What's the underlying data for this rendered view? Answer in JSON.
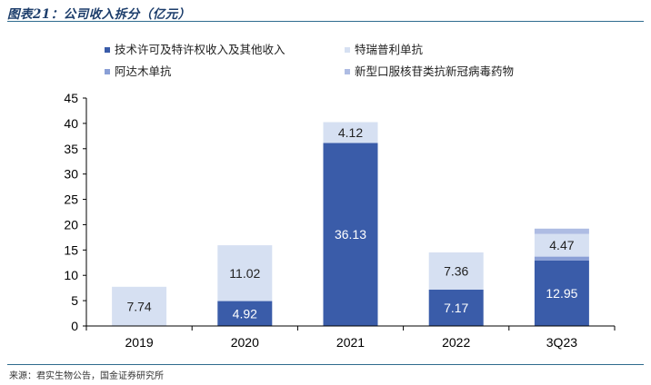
{
  "header": {
    "title": "图表21：公司收入拆分（亿元）"
  },
  "footer": {
    "source": "来源：君实生物公告，国金证券研究所"
  },
  "colors": {
    "tech_license": "#3a5ca9",
    "toripalimab": "#d6e0f2",
    "adalimumab": "#8a9fd6",
    "covid_drug": "#aebce3"
  },
  "chart_data": {
    "type": "bar",
    "stacked": true,
    "title": "公司收入拆分（亿元）",
    "categories": [
      "2019",
      "2020",
      "2021",
      "2022",
      "3Q23"
    ],
    "ylim": [
      0,
      45
    ],
    "yticks": [
      0,
      5,
      10,
      15,
      20,
      25,
      30,
      35,
      40,
      45
    ],
    "series": [
      {
        "name": "技术许可及特许权收入及其他收入",
        "values": [
          0,
          4.92,
          36.13,
          7.17,
          12.95
        ],
        "labels": [
          "",
          "4.92",
          "36.13",
          "7.17",
          "12.95"
        ]
      },
      {
        "name": "阿达木单抗",
        "values": [
          0,
          0,
          0,
          0,
          0.75
        ],
        "labels": [
          "",
          "",
          "",
          "",
          ""
        ]
      },
      {
        "name": "特瑞普利单抗",
        "values": [
          7.74,
          11.02,
          4.12,
          7.36,
          4.47
        ],
        "labels": [
          "7.74",
          "11.02",
          "4.12",
          "7.36",
          "4.47"
        ]
      },
      {
        "name": "新型口服核苷类抗新冠病毒药物",
        "values": [
          0,
          0,
          0,
          0,
          1.05
        ],
        "labels": [
          "",
          "",
          "",
          "",
          ""
        ]
      }
    ]
  }
}
